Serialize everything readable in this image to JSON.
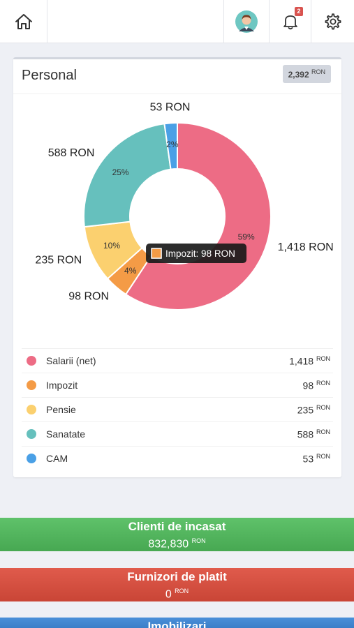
{
  "header": {
    "icons": [
      "home-icon",
      "avatar",
      "bell-icon",
      "gear-icon"
    ],
    "notification_count": "2"
  },
  "card": {
    "title": "Personal",
    "total": "2,392",
    "currency": "RON"
  },
  "chart_data": {
    "type": "pie",
    "subtype": "doughnut",
    "unit": "RON",
    "categories": [
      "Salarii (net)",
      "Impozit",
      "Pensie",
      "Sanatate",
      "CAM"
    ],
    "values": [
      1418,
      98,
      235,
      588,
      53
    ],
    "value_labels": [
      "1,418 RON",
      "98 RON",
      "235 RON",
      "588 RON",
      "53 RON"
    ],
    "percent_labels": [
      "59%",
      "4%",
      "10%",
      "25%",
      "2%"
    ],
    "colors": [
      "#ed6c85",
      "#f49b46",
      "#fbd06f",
      "#66c0bd",
      "#4aa0e6"
    ],
    "tooltip": {
      "category_index": 1,
      "text": "Impozit: 98 RON"
    },
    "legend_position": "bottom"
  },
  "legend": {
    "items": [
      {
        "label": "Salarii (net)",
        "value": "1,418",
        "color": "#ed6c85"
      },
      {
        "label": "Impozit",
        "value": "98",
        "color": "#f49b46"
      },
      {
        "label": "Pensie",
        "value": "235",
        "color": "#fbd06f"
      },
      {
        "label": "Sanatate",
        "value": "588",
        "color": "#66c0bd"
      },
      {
        "label": "CAM",
        "value": "53",
        "color": "#4aa0e6"
      }
    ],
    "currency": "RON"
  },
  "summary": {
    "clienti": {
      "title": "Clienti de incasat",
      "value": "832,830",
      "currency": "RON"
    },
    "furnizori": {
      "title": "Furnizori de platit",
      "value": "0",
      "currency": "RON"
    },
    "imobilizari": {
      "title": "Imobilizari"
    }
  }
}
